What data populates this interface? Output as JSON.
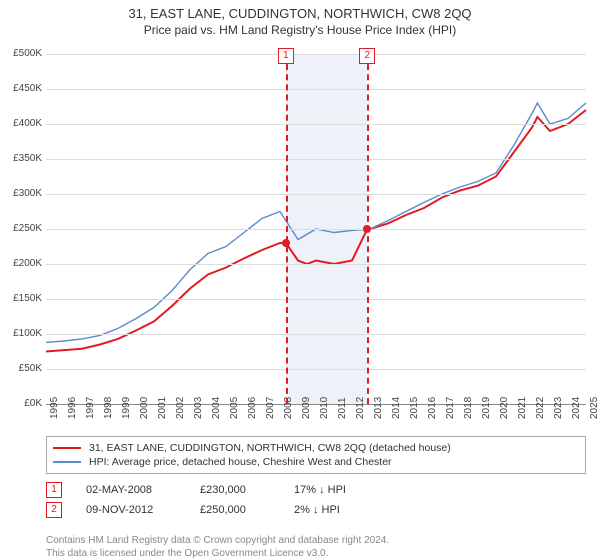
{
  "title": "31, EAST LANE, CUDDINGTON, NORTHWICH, CW8 2QQ",
  "subtitle": "Price paid vs. HM Land Registry's House Price Index (HPI)",
  "chart": {
    "type": "line",
    "x_years": [
      1995,
      1996,
      1997,
      1998,
      1999,
      2000,
      2001,
      2002,
      2003,
      2004,
      2005,
      2006,
      2007,
      2008,
      2009,
      2010,
      2011,
      2012,
      2013,
      2014,
      2015,
      2016,
      2017,
      2018,
      2019,
      2020,
      2021,
      2022,
      2023,
      2024,
      2025
    ],
    "xmin": 1995,
    "xmax": 2025,
    "ylim": [
      0,
      500
    ],
    "ytick_step": 50,
    "y_prefix": "£",
    "y_suffix": "K",
    "grid_color": "#dddddd",
    "axis_color": "#888888",
    "background_color": "#ffffff",
    "band": {
      "start": 2008.33,
      "end": 2012.85,
      "color": "#eef1f8"
    },
    "vlines": [
      {
        "x": 2008.33,
        "color": "#e01b22",
        "label": "1"
      },
      {
        "x": 2012.85,
        "color": "#e01b22",
        "label": "2"
      }
    ],
    "series": [
      {
        "name": "31, EAST LANE, CUDDINGTON, NORTHWICH, CW8 2QQ (detached house)",
        "color": "#e01b22",
        "width": 2,
        "points": [
          [
            1995,
            75
          ],
          [
            1996,
            77
          ],
          [
            1997,
            79
          ],
          [
            1998,
            85
          ],
          [
            1999,
            93
          ],
          [
            2000,
            105
          ],
          [
            2001,
            118
          ],
          [
            2002,
            140
          ],
          [
            2003,
            165
          ],
          [
            2004,
            185
          ],
          [
            2005,
            195
          ],
          [
            2006,
            208
          ],
          [
            2007,
            220
          ],
          [
            2008,
            230
          ],
          [
            2008.33,
            230
          ],
          [
            2009,
            205
          ],
          [
            2009.5,
            200
          ],
          [
            2010,
            205
          ],
          [
            2011,
            200
          ],
          [
            2012,
            205
          ],
          [
            2012.85,
            250
          ],
          [
            2013,
            250
          ],
          [
            2014,
            258
          ],
          [
            2015,
            270
          ],
          [
            2016,
            280
          ],
          [
            2017,
            295
          ],
          [
            2018,
            305
          ],
          [
            2019,
            312
          ],
          [
            2020,
            325
          ],
          [
            2021,
            360
          ],
          [
            2022,
            395
          ],
          [
            2022.3,
            410
          ],
          [
            2023,
            390
          ],
          [
            2024,
            400
          ],
          [
            2025,
            420
          ]
        ],
        "markers": [
          {
            "x": 2008.33,
            "y": 230,
            "color": "#e01b22"
          },
          {
            "x": 2012.85,
            "y": 250,
            "color": "#e01b22"
          }
        ]
      },
      {
        "name": "HPI: Average price, detached house, Cheshire West and Chester",
        "color": "#5b8bc9",
        "width": 1.4,
        "points": [
          [
            1995,
            88
          ],
          [
            1996,
            90
          ],
          [
            1997,
            93
          ],
          [
            1998,
            98
          ],
          [
            1999,
            108
          ],
          [
            2000,
            122
          ],
          [
            2001,
            138
          ],
          [
            2002,
            162
          ],
          [
            2003,
            192
          ],
          [
            2004,
            215
          ],
          [
            2005,
            225
          ],
          [
            2006,
            245
          ],
          [
            2007,
            265
          ],
          [
            2008,
            275
          ],
          [
            2009,
            235
          ],
          [
            2010,
            250
          ],
          [
            2011,
            245
          ],
          [
            2012,
            248
          ],
          [
            2013,
            250
          ],
          [
            2014,
            262
          ],
          [
            2015,
            275
          ],
          [
            2016,
            288
          ],
          [
            2017,
            300
          ],
          [
            2018,
            310
          ],
          [
            2019,
            318
          ],
          [
            2020,
            330
          ],
          [
            2021,
            370
          ],
          [
            2022,
            415
          ],
          [
            2022.3,
            430
          ],
          [
            2023,
            400
          ],
          [
            2024,
            408
          ],
          [
            2025,
            430
          ]
        ]
      }
    ]
  },
  "legend": {
    "rows": [
      {
        "color": "#e01b22",
        "label": "31, EAST LANE, CUDDINGTON, NORTHWICH, CW8 2QQ (detached house)"
      },
      {
        "color": "#5b8bc9",
        "label": "HPI: Average price, detached house, Cheshire West and Chester"
      }
    ]
  },
  "sales": [
    {
      "num": "1",
      "color": "#e01b22",
      "date": "02-MAY-2008",
      "price": "£230,000",
      "delta": "17% ↓ HPI"
    },
    {
      "num": "2",
      "color": "#e01b22",
      "date": "09-NOV-2012",
      "price": "£250,000",
      "delta": "2% ↓ HPI"
    }
  ],
  "footer_line1": "Contains HM Land Registry data © Crown copyright and database right 2024.",
  "footer_line2": "This data is licensed under the Open Government Licence v3.0."
}
